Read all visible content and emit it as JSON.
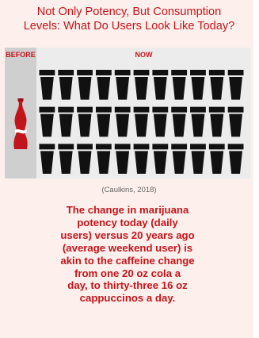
{
  "title_line1": "Not Only Potency, But Consumption",
  "title_line2": "Levels: What Do Users Look Like Today?",
  "panel_before_label": "BEFORE",
  "panel_now_label": "NOW",
  "before_item": {
    "icon": "cola-bottle-icon",
    "count": 1
  },
  "now_items": {
    "icon": "coffee-cup-icon",
    "rows": 3,
    "columns": 11,
    "count": 33
  },
  "citation": "(Caulkins, 2018)",
  "message_lines": [
    "The change in marijuana",
    "potency today (daily",
    "users) versus 20 years ago",
    "(average weekend user) is",
    "akin to the caffeine change",
    "from one 20 oz cola a",
    "day, to thirty-three 16 oz",
    "cappuccinos a day."
  ],
  "colors": {
    "accent": "#c1151c",
    "cup": "#111111",
    "background": "#fdf0ec",
    "panel": "#ececec",
    "before_panel": "#cfcfcf"
  }
}
